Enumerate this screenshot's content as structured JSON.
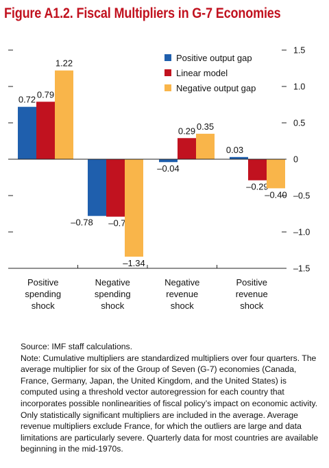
{
  "title": "Figure A1.2. Fiscal Multipliers in G-7 Economies",
  "chart_data": {
    "type": "bar",
    "categories": [
      [
        "Positive",
        "spending",
        "shock"
      ],
      [
        "Negative",
        "spending",
        "shock"
      ],
      [
        "Negative",
        "revenue",
        "shock"
      ],
      [
        "Positive",
        "revenue",
        "shock"
      ]
    ],
    "series": [
      {
        "name": "Positive output gap",
        "color": "#1f5fad",
        "values": [
          0.72,
          -0.78,
          -0.04,
          0.03
        ],
        "labels": [
          "0.72",
          "–0.78",
          "–0.04",
          "0.03"
        ]
      },
      {
        "name": "Linear model",
        "color": "#c1121f",
        "values": [
          0.79,
          -0.79,
          0.29,
          -0.29
        ],
        "labels": [
          "0.79",
          "–0.79",
          "0.29",
          "–0.29"
        ]
      },
      {
        "name": "Negative output gap",
        "color": "#f9b54a",
        "values": [
          1.22,
          -1.34,
          0.35,
          -0.4
        ],
        "labels": [
          "1.22",
          "–1.34",
          "0.35",
          "–0.40"
        ]
      }
    ],
    "ylim": [
      -1.5,
      1.5
    ],
    "yticks": [
      1.5,
      1.0,
      0.5,
      0,
      -0.5,
      -1.0,
      -1.5
    ],
    "ytick_labels": [
      "1.5",
      "1.0",
      "0.5",
      "0",
      "–0.5",
      "–1.0",
      "–1.5"
    ],
    "legend_position": "top-right",
    "grid": false
  },
  "footnotes": {
    "source": "Source: IMF staff calculations.",
    "note": "Note: Cumulative multipliers are standardized multipliers over four quarters. The average multiplier for six of the Group of Seven (G-7) economies (Canada, France, Germany, Japan, the United Kingdom, and the United States) is computed using a threshold vector autoregression for each country that incorporates possible nonlinearities of fiscal policy’s impact on economic activity. Only statistically significant multipliers are included in the average. Average revenue multipliers exclude France, for which the outliers are large and data limitations are particularly severe. Quarterly data for most countries are available beginning in the mid-1970s."
  }
}
